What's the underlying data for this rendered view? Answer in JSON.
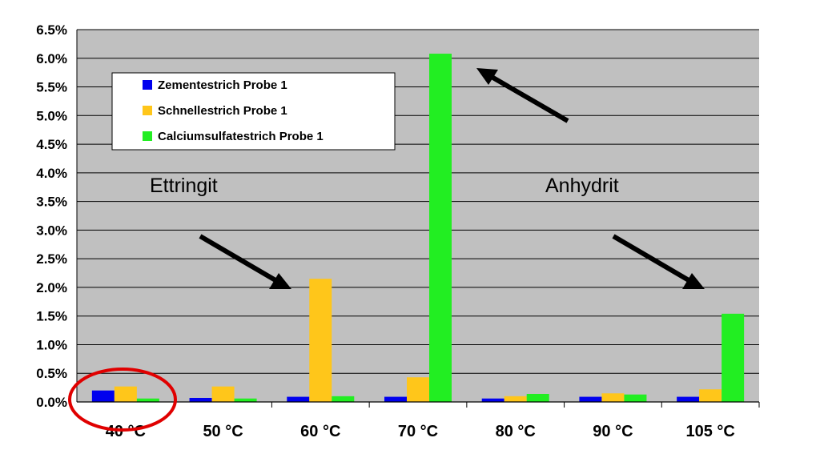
{
  "chart_data": {
    "type": "bar",
    "categories": [
      "40 °C",
      "50 °C",
      "60 °C",
      "70 °C",
      "80 °C",
      "90 °C",
      "105 °C"
    ],
    "series": [
      {
        "name": "Zementestrich Probe 1",
        "color": "#0000ee",
        "values": [
          0.2,
          0.07,
          0.09,
          0.09,
          0.06,
          0.09,
          0.09
        ]
      },
      {
        "name": "Schnellestrich Probe 1",
        "color": "#ffc61a",
        "values": [
          0.27,
          0.27,
          2.15,
          0.43,
          0.1,
          0.15,
          0.22
        ]
      },
      {
        "name": "Calciumsulfatestrich Probe 1",
        "color": "#22ee22",
        "values": [
          0.06,
          0.06,
          0.1,
          6.08,
          0.14,
          0.13,
          1.54
        ]
      }
    ],
    "y_ticks": [
      "0.0%",
      "0.5%",
      "1.0%",
      "1.5%",
      "2.0%",
      "2.5%",
      "3.0%",
      "3.5%",
      "4.0%",
      "4.5%",
      "5.0%",
      "5.5%",
      "6.0%",
      "6.5%"
    ],
    "ylim": [
      0,
      6.5
    ],
    "grid": true,
    "plot_background": "#c0c0c0",
    "legend_position": "top-left",
    "annotations": [
      {
        "text": "Ettringit"
      },
      {
        "text": "Anhydrit"
      }
    ],
    "highlight": {
      "category": "40 °C",
      "shape": "ellipse",
      "color": "#e00000"
    }
  }
}
